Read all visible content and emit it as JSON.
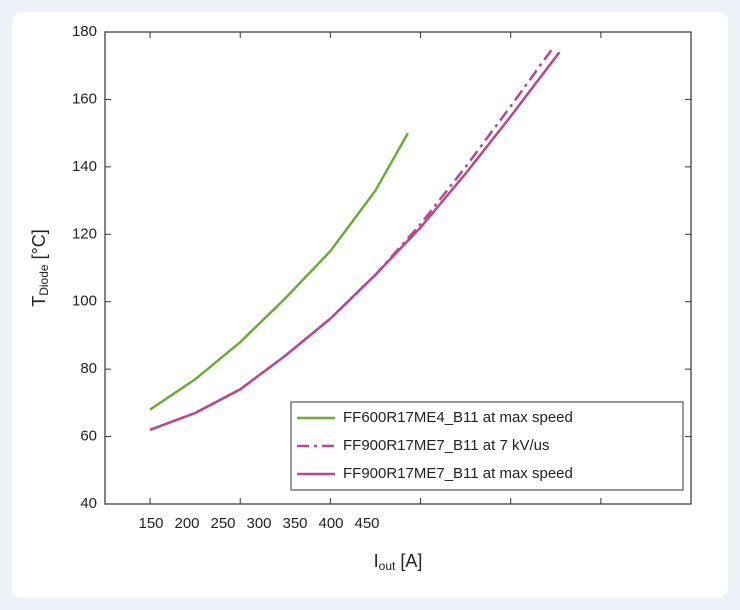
{
  "chart_data": {
    "type": "line",
    "ylabel": "T",
    "ylabel_sub": "Diode",
    "ylabel_unit": " [°C]",
    "xlabel": "I",
    "xlabel_sub": "out",
    "xlabel_unit": " [A]",
    "xlim": [
      125,
      450
    ],
    "xticks": [
      150,
      200,
      250,
      300,
      350,
      400,
      450
    ],
    "ylim": [
      40,
      180
    ],
    "yticks": [
      40,
      60,
      80,
      100,
      120,
      140,
      160,
      180
    ],
    "grid": false,
    "legend": "lower right",
    "series": [
      {
        "name": "FF600R17ME4_B11 at max speed",
        "color": "#6fa83c",
        "style": "solid",
        "x": [
          150,
          175,
          200,
          225,
          250,
          275,
          293
        ],
        "values": [
          68,
          77,
          88,
          101,
          115,
          133,
          150
        ]
      },
      {
        "name": "FF900R17ME7_B11 at 7 kV/us",
        "color": "#b8478e",
        "style": "dash",
        "x": [
          150,
          175,
          200,
          225,
          250,
          275,
          300,
          325,
          350,
          373
        ],
        "values": [
          62,
          67,
          74,
          84,
          95,
          108,
          123,
          140,
          158,
          175
        ]
      },
      {
        "name": "FF900R17ME7_B11 at max speed",
        "color": "#b8478e",
        "style": "solid",
        "x": [
          150,
          175,
          200,
          225,
          250,
          275,
          300,
          325,
          350,
          377
        ],
        "values": [
          62,
          67,
          74,
          84,
          95,
          108,
          122,
          138,
          155,
          174
        ]
      }
    ]
  }
}
